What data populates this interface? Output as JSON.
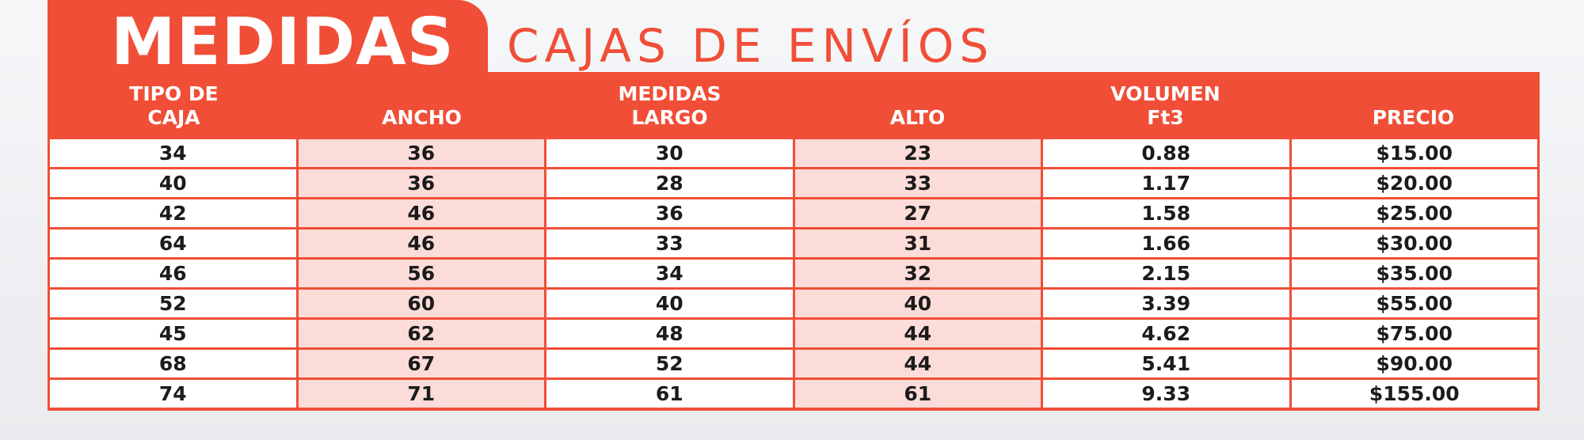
{
  "heading": {
    "title": "MEDIDAS",
    "subtitle": "CAJAS DE ENVÍOS"
  },
  "colors": {
    "accent": "#f04e37",
    "tint": "#fcdcd8"
  },
  "table": {
    "headers": [
      {
        "line1": "TIPO DE",
        "line2": "CAJA"
      },
      {
        "line1": "",
        "line2": "ANCHO"
      },
      {
        "line1": "MEDIDAS",
        "line2": "LARGO"
      },
      {
        "line1": "",
        "line2": "ALTO"
      },
      {
        "line1": "VOLUMEN",
        "line2": "Ft3"
      },
      {
        "line1": "",
        "line2": "PRECIO"
      }
    ],
    "rows": [
      [
        "34",
        "36",
        "30",
        "23",
        "0.88",
        "$15.00"
      ],
      [
        "40",
        "36",
        "28",
        "33",
        "1.17",
        "$20.00"
      ],
      [
        "42",
        "46",
        "36",
        "27",
        "1.58",
        "$25.00"
      ],
      [
        "64",
        "46",
        "33",
        "31",
        "1.66",
        "$30.00"
      ],
      [
        "46",
        "56",
        "34",
        "32",
        "2.15",
        "$35.00"
      ],
      [
        "52",
        "60",
        "40",
        "40",
        "3.39",
        "$55.00"
      ],
      [
        "45",
        "62",
        "48",
        "44",
        "4.62",
        "$75.00"
      ],
      [
        "68",
        "67",
        "52",
        "44",
        "5.41",
        "$90.00"
      ],
      [
        "74",
        "71",
        "61",
        "61",
        "9.33",
        "$155.00"
      ]
    ]
  }
}
